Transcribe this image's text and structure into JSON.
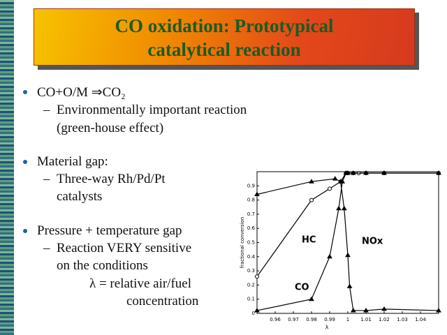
{
  "slide": {
    "title": [
      "CO oxidation: Prototypical",
      "catalytical reaction"
    ],
    "bullets": [
      {
        "text": "CO+O/M ⇒CO₂",
        "sub": [
          "Environmentally important reaction",
          "(green-house effect)"
        ]
      },
      {
        "text": "Material gap:",
        "sub": [
          "Three-way Rh/Pd/Pt",
          "catalysts"
        ]
      },
      {
        "text": "Pressure + temperature gap",
        "sub": [
          "Reaction VERY sensitive",
          "on the conditions"
        ]
      }
    ],
    "note": [
      "λ = relative air/fuel",
      "concentration"
    ]
  },
  "chart_data": {
    "type": "line",
    "x_label": "λ",
    "y_label": "fractional conversion",
    "xlim": [
      0.95,
      1.05
    ],
    "ylim": [
      0,
      1
    ],
    "xticks": [
      0.96,
      0.97,
      0.98,
      0.99,
      1,
      1.01,
      1.02,
      1.03,
      1.04
    ],
    "yticks": [
      0,
      0.1,
      0.2,
      0.3,
      0.4,
      0.5,
      0.6,
      0.7,
      0.8,
      0.9
    ],
    "series": [
      {
        "name": "HC",
        "color": "#000000",
        "marker": "circle",
        "x": [
          0.95,
          0.98,
          0.99,
          0.996,
          0.999,
          1.0,
          1.003,
          1.006,
          1.01,
          1.02,
          1.05
        ],
        "values": [
          0.26,
          0.8,
          0.88,
          0.93,
          0.99,
          0.99,
          0.99,
          0.99,
          0.99,
          0.99,
          0.99
        ]
      },
      {
        "name": "CO",
        "color": "#000000",
        "marker": "triangle",
        "x": [
          0.95,
          0.98,
          0.99,
          0.995,
          0.997,
          0.999,
          1.0,
          1.003,
          1.01,
          1.02,
          1.05
        ],
        "values": [
          0.02,
          0.1,
          0.4,
          0.74,
          0.93,
          0.99,
          0.99,
          0.99,
          0.99,
          0.99,
          0.99
        ]
      },
      {
        "name": "NOx",
        "color": "#000000",
        "marker": "triangle",
        "x": [
          0.95,
          0.98,
          0.993,
          0.996,
          0.998,
          1.0,
          1.001,
          1.003,
          1.01,
          1.02,
          1.05
        ],
        "values": [
          0.84,
          0.93,
          0.95,
          0.93,
          0.74,
          0.41,
          0.19,
          0.02,
          0.02,
          0.03,
          0.02
        ]
      }
    ]
  }
}
